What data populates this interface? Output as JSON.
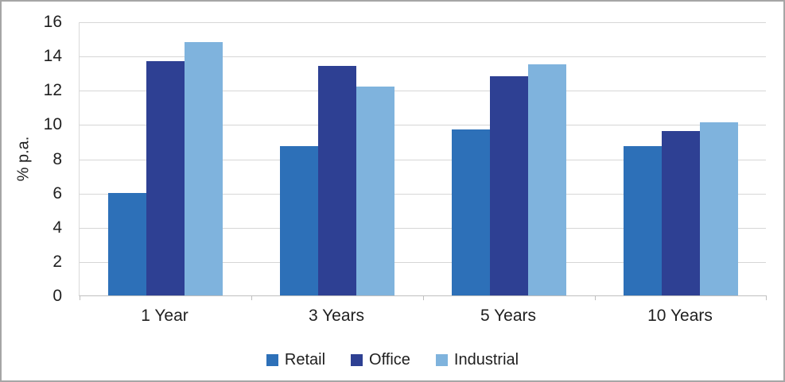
{
  "chart_data": {
    "type": "bar",
    "title": "",
    "xlabel": "",
    "ylabel": "% p.a.",
    "categories": [
      "1 Year",
      "3 Years",
      "5 Years",
      "10 Years"
    ],
    "series": [
      {
        "name": "Retail",
        "color": "#2D70B8",
        "values": [
          6.0,
          8.7,
          9.7,
          8.7
        ]
      },
      {
        "name": "Office",
        "color": "#2E4093",
        "values": [
          13.7,
          13.4,
          12.8,
          9.6
        ]
      },
      {
        "name": "Industrial",
        "color": "#7FB3DD",
        "values": [
          14.8,
          12.2,
          13.5,
          10.1
        ]
      }
    ],
    "ylim": [
      0,
      16
    ],
    "yticks": [
      0,
      2,
      4,
      6,
      8,
      10,
      12,
      14,
      16
    ],
    "grid": "horizontal",
    "legend_position": "bottom"
  },
  "colors": {
    "gridline": "#D6D6D6",
    "axis_line": "#BFBFBF",
    "text": "#1F1F1F",
    "frame_border": "#A6A6A6"
  }
}
